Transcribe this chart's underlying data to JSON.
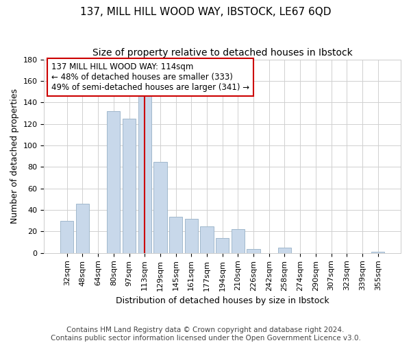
{
  "title": "137, MILL HILL WOOD WAY, IBSTOCK, LE67 6QD",
  "subtitle": "Size of property relative to detached houses in Ibstock",
  "xlabel": "Distribution of detached houses by size in Ibstock",
  "ylabel": "Number of detached properties",
  "bar_labels": [
    "32sqm",
    "48sqm",
    "64sqm",
    "80sqm",
    "97sqm",
    "113sqm",
    "129sqm",
    "145sqm",
    "161sqm",
    "177sqm",
    "194sqm",
    "210sqm",
    "226sqm",
    "242sqm",
    "258sqm",
    "274sqm",
    "290sqm",
    "307sqm",
    "323sqm",
    "339sqm",
    "355sqm"
  ],
  "bar_values": [
    30,
    46,
    0,
    132,
    125,
    149,
    85,
    34,
    32,
    25,
    14,
    22,
    4,
    0,
    5,
    0,
    0,
    0,
    0,
    0,
    1
  ],
  "bar_color": "#c8d8ea",
  "bar_edge_color": "#a0b8cc",
  "vline_color": "#cc0000",
  "annotation_line1": "137 MILL HILL WOOD WAY: 114sqm",
  "annotation_line2": "← 48% of detached houses are smaller (333)",
  "annotation_line3": "49% of semi-detached houses are larger (341) →",
  "annotation_box_color": "white",
  "annotation_box_edge": "#cc0000",
  "ylim": [
    0,
    180
  ],
  "yticks": [
    0,
    20,
    40,
    60,
    80,
    100,
    120,
    140,
    160,
    180
  ],
  "footer1": "Contains HM Land Registry data © Crown copyright and database right 2024.",
  "footer2": "Contains public sector information licensed under the Open Government Licence v3.0.",
  "title_fontsize": 11,
  "subtitle_fontsize": 10,
  "xlabel_fontsize": 9,
  "ylabel_fontsize": 9,
  "tick_fontsize": 8,
  "footer_fontsize": 7.5,
  "vline_index": 5
}
